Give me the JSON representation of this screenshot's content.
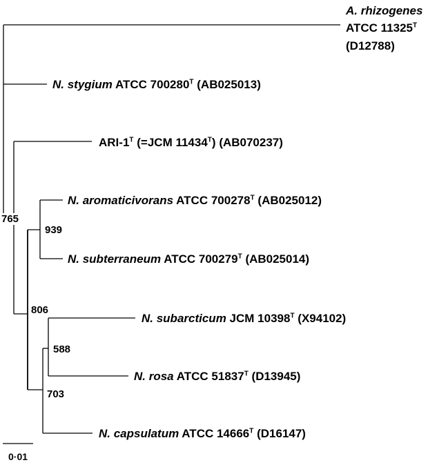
{
  "taxa": {
    "rhizogenes": {
      "name": "A. rhizogenes",
      "strain": "ATCC 11325",
      "type_mark": "T",
      "accession": "(D12788)"
    },
    "stygium": {
      "name": "N. stygium",
      "strain": "ATCC 700280",
      "type_mark": "T",
      "accession": "(AB025013)"
    },
    "ari1": {
      "name": "ARI-1",
      "type_mark": "T",
      "alt_open": "(=JCM 11434",
      "alt_close": ")",
      "accession": "(AB070237)"
    },
    "aromaticivorans": {
      "name": "N. aromaticivorans",
      "strain": "ATCC 700278",
      "type_mark": "T",
      "accession": "(AB025012)"
    },
    "subterraneum": {
      "name": "N. subterraneum",
      "strain": "ATCC 700279",
      "type_mark": "T",
      "accession": "(AB025014)"
    },
    "subarcticum": {
      "name": "N. subarcticum",
      "strain": "JCM 10398",
      "type_mark": "T",
      "accession": "(X94102)"
    },
    "rosa": {
      "name": "N. rosa",
      "strain": "ATCC 51837",
      "type_mark": "T",
      "accession": "(D13945)"
    },
    "capsulatum": {
      "name": "N. capsulatum",
      "strain": "ATCC 14666",
      "type_mark": "T",
      "accession": "(D16147)"
    }
  },
  "bootstrap": {
    "node_765": "765",
    "node_939": "939",
    "node_806": "806",
    "node_588": "588",
    "node_703": "703"
  },
  "scale_bar": {
    "label": "0·01",
    "length_substitutions": 0.01
  }
}
